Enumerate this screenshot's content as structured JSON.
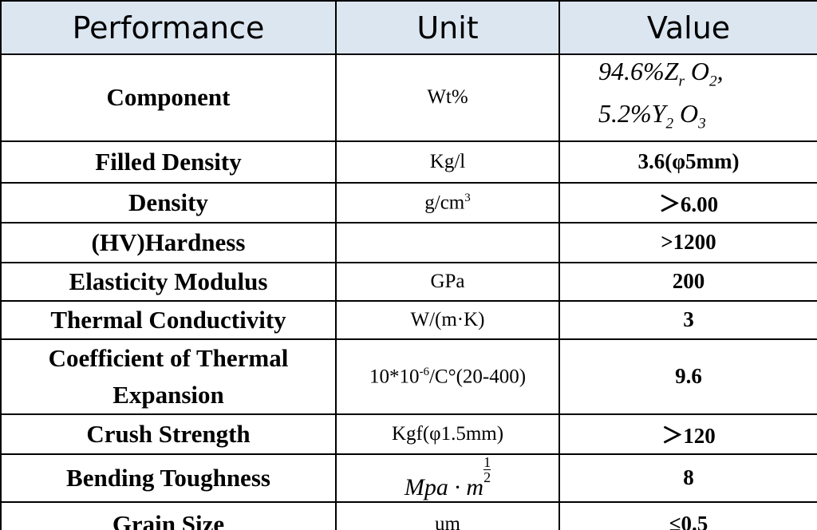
{
  "table": {
    "header": [
      "Performance",
      "Unit",
      "Value"
    ],
    "rows": [
      [
        "Component",
        "Wt%",
        {
          "lines": [
            [
              "94.6%Z",
              {
                "sub": "r"
              },
              " O",
              {
                "sub": "2"
              },
              ","
            ],
            [
              "5.2%Y",
              {
                "sub": "2"
              },
              " O",
              {
                "sub": "3"
              }
            ]
          ]
        }
      ],
      [
        "Filled Density",
        "Kg/l",
        "3.6(φ5mm)"
      ],
      [
        "Density",
        [
          "g/cm",
          {
            "sup": "3"
          }
        ],
        "＞6.00"
      ],
      [
        "(HV)Hardness",
        null,
        ">1200"
      ],
      [
        "Elasticity Modulus",
        "GPa",
        "200"
      ],
      [
        "Thermal Conductivity",
        "W/(m·K)",
        "3"
      ],
      [
        "Coefficient of Thermal Expansion",
        [
          "10*10",
          {
            "sup": "-6"
          },
          "/C°(20-400)"
        ],
        "9.6"
      ],
      [
        "Crush Strength",
        "Kgf(φ1.5mm)",
        "＞120"
      ],
      [
        "Bending Toughness",
        [
          "Mpa · m",
          {
            "frac": [
              "1",
              "2"
            ]
          }
        ],
        "8"
      ],
      [
        "Grain Size",
        "um",
        "≤0.5"
      ]
    ]
  }
}
